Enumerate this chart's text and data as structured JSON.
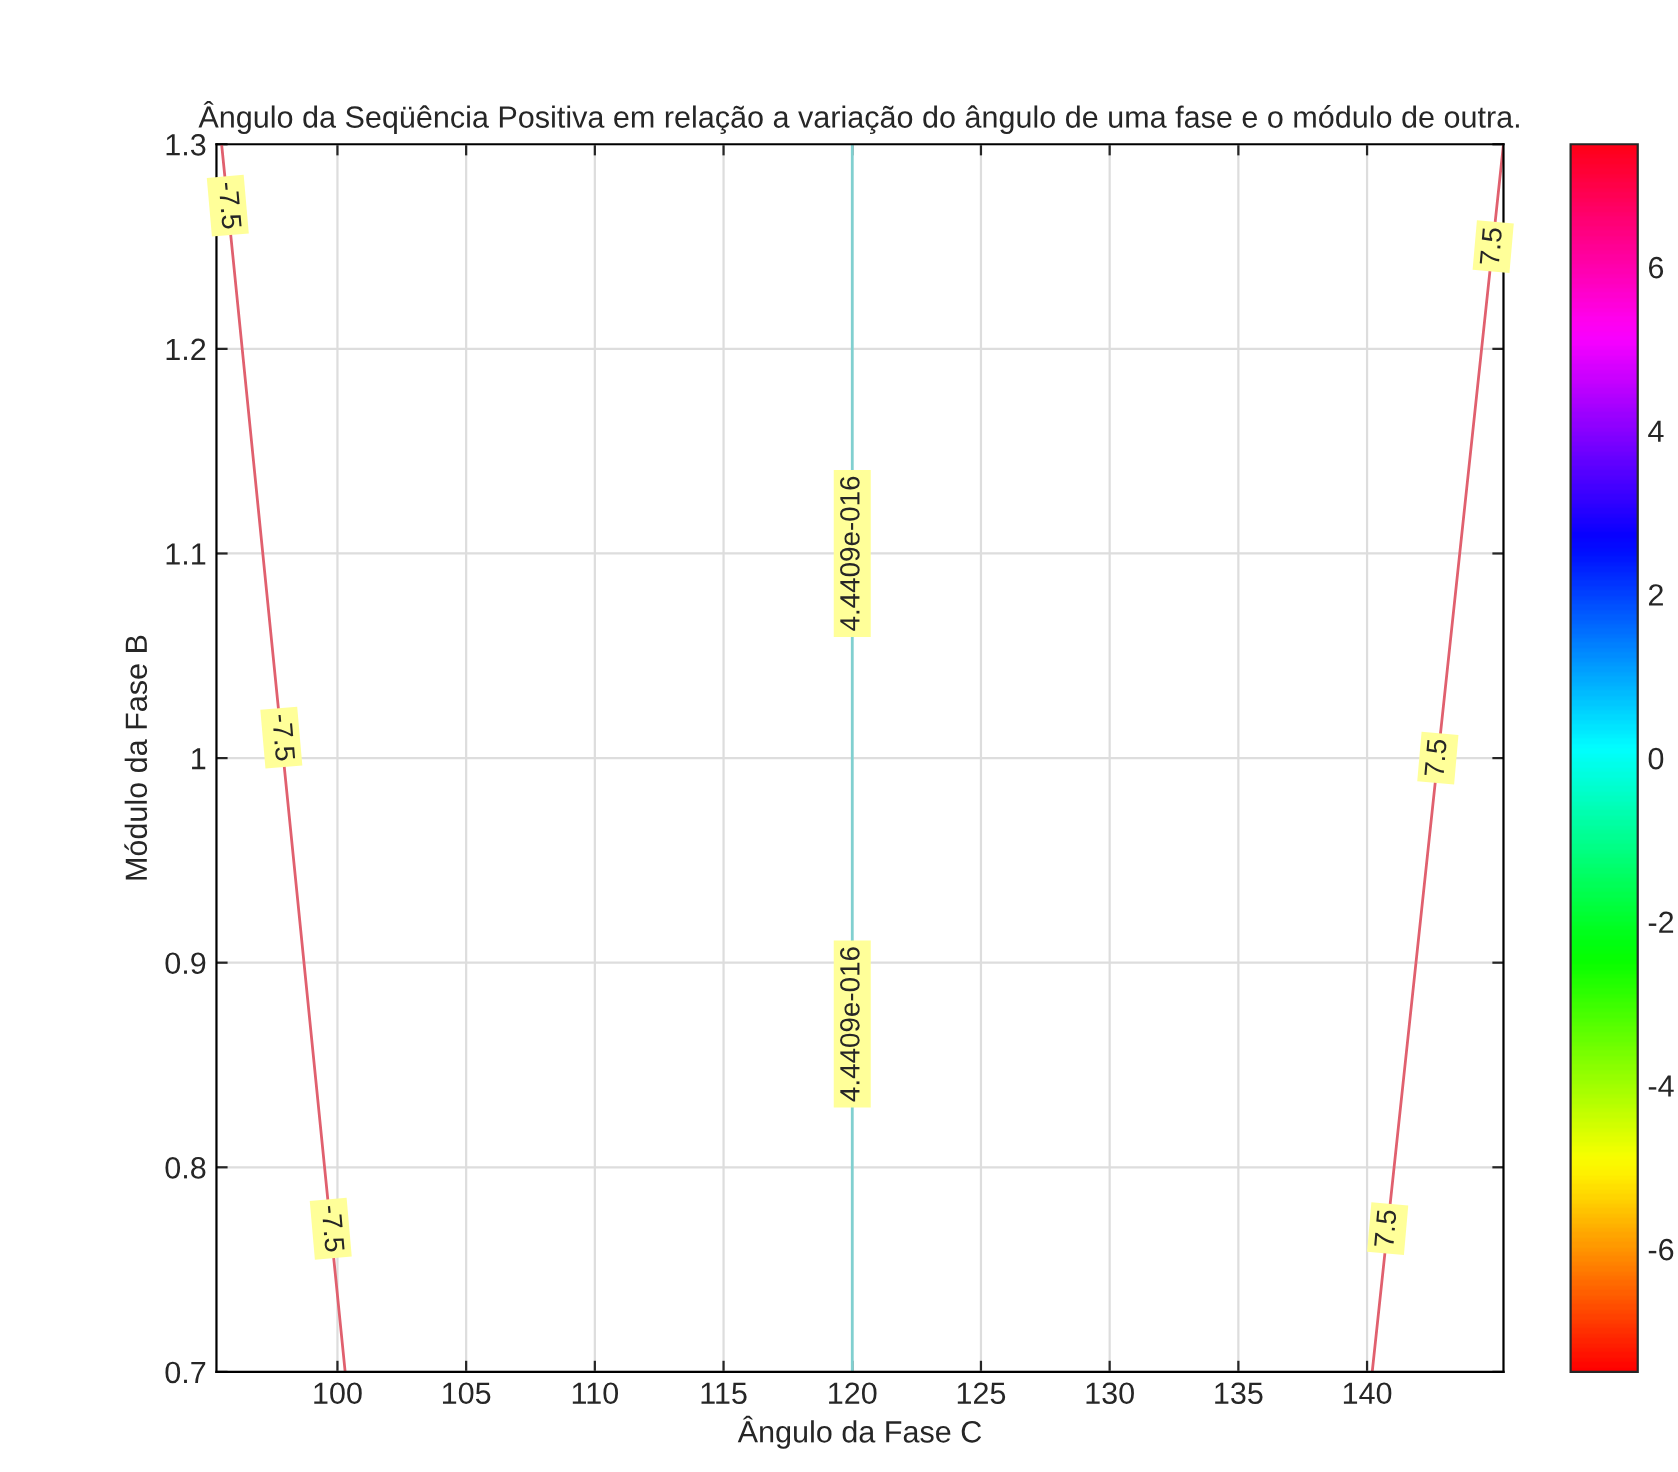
{
  "chart_data": {
    "type": "line",
    "title": "Ângulo da Seqüência Positiva em relação a variação do ângulo de uma fase e o módulo de outra.",
    "xlabel": "Ângulo da Fase C",
    "ylabel": "Módulo da Fase B",
    "series": [
      {
        "color": "#e0606e",
        "x": [
          95.5,
          100.3
        ],
        "values": [
          1.3,
          0.7
        ]
      },
      {
        "color": "#80d0d0",
        "x": [
          120,
          120
        ],
        "values": [
          1.3,
          0.7
        ]
      },
      {
        "color": "#e0606e",
        "x": [
          140.2,
          145.3
        ],
        "values": [
          0.7,
          1.3
        ]
      }
    ],
    "annotations": [
      {
        "text": "-7.5",
        "x": 95.74,
        "y": 1.27
      },
      {
        "text": "-7.5",
        "x": 97.82,
        "y": 1.01
      },
      {
        "text": "-7.5",
        "x": 99.74,
        "y": 0.77
      },
      {
        "text": "4.4409e-016",
        "x": 120,
        "y": 1.1
      },
      {
        "text": "4.4409e-016",
        "x": 120,
        "y": 0.87
      },
      {
        "text": "7.5",
        "x": 144.9,
        "y": 1.25
      },
      {
        "text": "7.5",
        "x": 142.75,
        "y": 1.0
      },
      {
        "text": "7.5",
        "x": 140.8,
        "y": 0.77
      }
    ],
    "xlim": [
      95.3,
      145.3
    ],
    "ylim": [
      0.7,
      1.3
    ],
    "xticks": [
      100,
      105,
      110,
      115,
      120,
      125,
      130,
      135,
      140
    ],
    "yticks": [
      0.7,
      0.8,
      0.9,
      1,
      1.1,
      1.2,
      1.3
    ],
    "grid": true,
    "clim": [
      -7.5,
      7.5
    ],
    "cticks": [
      -6,
      -4,
      -2,
      0,
      2,
      4,
      6
    ]
  }
}
